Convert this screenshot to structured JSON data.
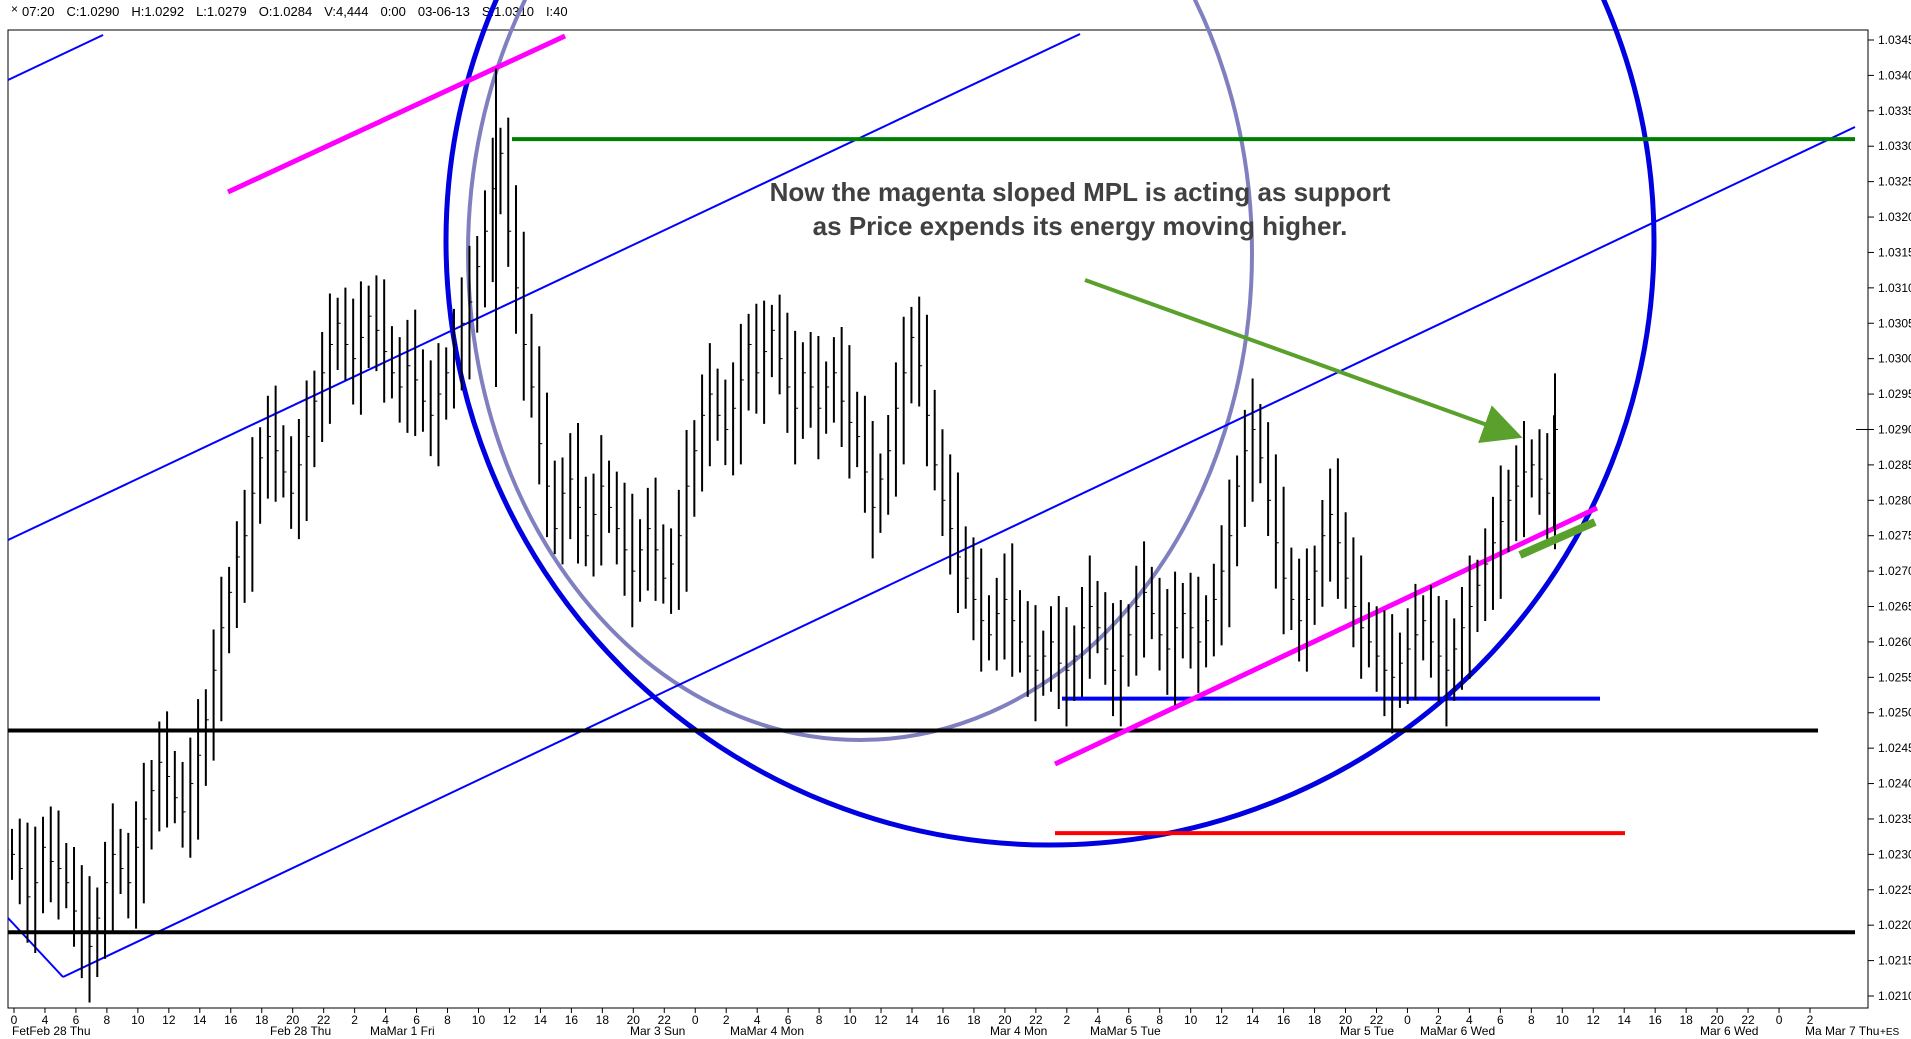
{
  "header": {
    "close_glyph": "×",
    "fields": [
      "07:20",
      "C:1.0290",
      "H:1.0292",
      "L:1.0279",
      "O:1.0284",
      "V:4,444",
      "0:00",
      "03-06-13",
      "S:1.0310",
      "I:40"
    ]
  },
  "annotation": {
    "line1": "Now the magenta sloped MPL is acting as support",
    "line2": "as Price expends its energy moving higher."
  },
  "chart_data": {
    "type": "bar",
    "title": "",
    "xlabel": "",
    "ylabel": "",
    "ylim": [
      1.0208,
      1.0347
    ],
    "y_ticks": [
      "1.0345",
      "1.0340",
      "1.0335",
      "1.0330",
      "1.0325",
      "1.0320",
      "1.0315",
      "1.0310",
      "1.0305",
      "1.0300",
      "1.0295",
      "1.0290",
      "1.0285",
      "1.0280",
      "1.0275",
      "1.0270",
      "1.0265",
      "1.0260",
      "1.0255",
      "1.0250",
      "1.0245",
      "1.0240",
      "1.0235",
      "1.0230",
      "1.0225",
      "1.0220",
      "1.0215",
      "1.0210"
    ],
    "hour_ticks": [
      "0",
      "4",
      "6",
      "8",
      "10",
      "12",
      "14",
      "16",
      "18",
      "20",
      "22",
      "2",
      "4",
      "6",
      "8",
      "10",
      "12",
      "14",
      "16",
      "18",
      "20",
      "22",
      "0",
      "2",
      "4",
      "6",
      "8",
      "10",
      "12",
      "14",
      "16",
      "18",
      "20",
      "22",
      "2",
      "4",
      "6",
      "8",
      "10",
      "12",
      "14",
      "16",
      "18",
      "20",
      "22",
      "0",
      "2",
      "4",
      "6",
      "8",
      "10",
      "12",
      "14",
      "16",
      "18",
      "20",
      "22",
      "0",
      "2"
    ],
    "date_labels": [
      "FetFeb 28 Thu",
      "Feb 28 Thu",
      "MaMar 1 Fri",
      "Mar 3 Sun",
      "MaMar 4 Mon",
      "Mar 4 Mon",
      "MaMar 5 Tue",
      "Mar 5 Tue",
      "MaMar 6 Wed",
      "Mar 6 Wed",
      "Ma Mar 7 Thu"
    ],
    "axis_corner_label": "+ES",
    "price_marker": "1.0290",
    "bars_close": [
      1.023,
      1.0228,
      1.0224,
      1.0226,
      1.0231,
      1.0229,
      1.0228,
      1.0226,
      1.0222,
      1.0219,
      1.0217,
      1.0221,
      1.0226,
      1.023,
      1.0228,
      1.0226,
      1.0231,
      1.0235,
      1.0239,
      1.0243,
      1.0241,
      1.0238,
      1.0236,
      1.024,
      1.0244,
      1.0249,
      1.0256,
      1.0262,
      1.0267,
      1.0272,
      1.0275,
      1.0281,
      1.0286,
      1.0289,
      1.0287,
      1.0284,
      1.0281,
      1.0285,
      1.0289,
      1.0294,
      1.0298,
      1.0302,
      1.0305,
      1.0302,
      1.03,
      1.0303,
      1.0306,
      1.0304,
      1.0301,
      1.0298,
      1.0296,
      1.0299,
      1.0297,
      1.0294,
      1.0292,
      1.0295,
      1.0298,
      1.0302,
      1.0305,
      1.0308,
      1.0313,
      1.0318,
      1.0324,
      1.0329,
      1.0318,
      1.031,
      1.0302,
      1.0296,
      1.0288,
      1.0282,
      1.0276,
      1.0281,
      1.0283,
      1.0279,
      1.0275,
      1.0278,
      1.0282,
      1.0279,
      1.0276,
      1.0273,
      1.027,
      1.0273,
      1.0276,
      1.0273,
      1.0269,
      1.0271,
      1.0275,
      1.0282,
      1.0287,
      1.0292,
      1.0295,
      1.0292,
      1.029,
      1.0293,
      1.0297,
      1.0302,
      1.0298,
      1.0301,
      1.0304,
      1.03,
      1.0296,
      1.0293,
      1.0298,
      1.0296,
      1.0293,
      1.0296,
      1.0298,
      1.0294,
      1.0291,
      1.0289,
      1.0284,
      1.0279,
      1.0283,
      1.0287,
      1.0293,
      1.0298,
      1.0303,
      1.0299,
      1.0292,
      1.0285,
      1.028,
      1.0276,
      1.0272,
      1.0269,
      1.0266,
      1.0263,
      1.0261,
      1.0264,
      1.0266,
      1.0263,
      1.026,
      1.0258,
      1.0256,
      1.0258,
      1.026,
      1.0257,
      1.0256,
      1.0258,
      1.0262,
      1.0265,
      1.0262,
      1.0259,
      1.0256,
      1.0258,
      1.0261,
      1.0265,
      1.0267,
      1.0264,
      1.0261,
      1.0259,
      1.0262,
      1.0264,
      1.0262,
      1.026,
      1.0263,
      1.0266,
      1.027,
      1.0275,
      1.0282,
      1.0287,
      1.029,
      1.0286,
      1.028,
      1.0274,
      1.0269,
      1.0266,
      1.0263,
      1.0266,
      1.027,
      1.0275,
      1.0278,
      1.0274,
      1.0269,
      1.0265,
      1.0262,
      1.026,
      1.0258,
      1.0256,
      1.0255,
      1.0257,
      1.0259,
      1.0261,
      1.0263,
      1.026,
      1.0258,
      1.0256,
      1.0259,
      1.0262,
      1.0265,
      1.0268,
      1.0271,
      1.0274,
      1.0277,
      1.028,
      1.0282,
      1.0284,
      1.0285,
      1.0283,
      1.0281,
      1.029
    ],
    "lines": [
      {
        "name": "magenta-mpl-top",
        "color": "#ff00ff",
        "from": [
          1.0324,
          "Feb 28 16:00"
        ],
        "to": [
          1.0342,
          "Mar 1 08:00"
        ]
      },
      {
        "name": "magenta-mpl-support",
        "color": "#ff00ff",
        "from": [
          1.0243,
          "Mar 4 22:00"
        ],
        "to": [
          1.0279,
          "Mar 6 10:00"
        ]
      },
      {
        "name": "green-horizontal",
        "color": "#008000",
        "value": 1.0331
      },
      {
        "name": "blue-horizontal",
        "color": "#0000ff",
        "value": 1.0252
      },
      {
        "name": "black-horizontal-1",
        "color": "#000000",
        "value": 1.02475
      },
      {
        "name": "black-horizontal-2",
        "color": "#000000",
        "value": 1.0219
      },
      {
        "name": "red-horizontal",
        "color": "#ff0000",
        "value": 1.0233
      }
    ],
    "colors": {
      "bars": "#000000",
      "channel": "#0000ff",
      "circle_left": "#8080c0",
      "circle_right": "#0000e0",
      "arrow": "#5aa02c"
    },
    "grid": false
  }
}
